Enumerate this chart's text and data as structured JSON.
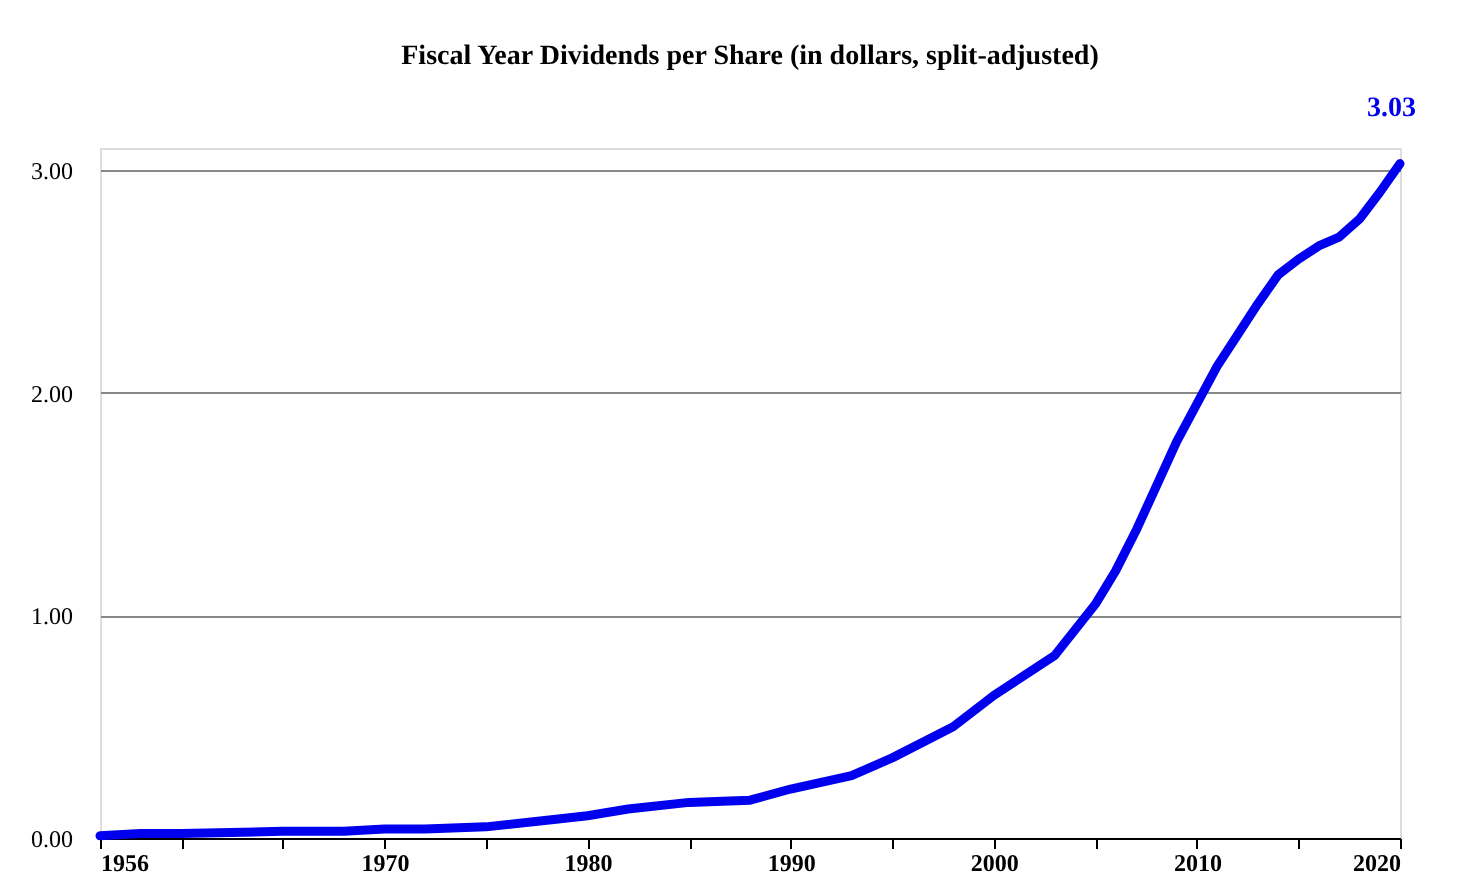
{
  "chart_data": {
    "type": "line",
    "title": "Fiscal Year Dividends per Share (in dollars, split-adjusted)",
    "x": [
      1956,
      1958,
      1960,
      1965,
      1968,
      1970,
      1972,
      1975,
      1978,
      1980,
      1982,
      1985,
      1988,
      1990,
      1993,
      1995,
      1998,
      2000,
      2003,
      2005,
      2006,
      2007,
      2008,
      2009,
      2010,
      2011,
      2012,
      2013,
      2014,
      2015,
      2016,
      2017,
      2018,
      2019,
      2020
    ],
    "series": [
      {
        "color": "#0000ee",
        "values": [
          0.01,
          0.02,
          0.02,
          0.03,
          0.03,
          0.04,
          0.04,
          0.05,
          0.08,
          0.1,
          0.13,
          0.16,
          0.17,
          0.22,
          0.28,
          0.36,
          0.5,
          0.64,
          0.82,
          1.05,
          1.2,
          1.38,
          1.58,
          1.78,
          1.95,
          2.12,
          2.26,
          2.4,
          2.53,
          2.6,
          2.66,
          2.7,
          2.78,
          2.9,
          3.03
        ],
        "value_labels": [
          null,
          null,
          null,
          null,
          null,
          null,
          null,
          null,
          null,
          null,
          null,
          null,
          null,
          null,
          null,
          null,
          null,
          null,
          null,
          null,
          null,
          null,
          null,
          null,
          null,
          null,
          null,
          null,
          null,
          null,
          null,
          null,
          null,
          null,
          "3.03"
        ]
      }
    ],
    "xlim": [
      1956,
      2020
    ],
    "xticks": [
      1956,
      {
        "value": 1960,
        "label": null
      },
      {
        "value": 1965,
        "label": null
      },
      1970,
      {
        "value": 1975,
        "label": null
      },
      1980,
      {
        "value": 1985,
        "label": null
      },
      1990,
      {
        "value": 1995,
        "label": null
      },
      2000,
      {
        "value": 2005,
        "label": null
      },
      2010,
      {
        "value": 2015,
        "label": null
      },
      2020
    ],
    "ylim": [
      0,
      3.1
    ],
    "yticks": [
      {
        "value": 0,
        "label": "0.00"
      },
      {
        "value": 1,
        "label": "1.00"
      },
      {
        "value": 2,
        "label": "2.00"
      },
      {
        "value": 3,
        "label": "3.00"
      }
    ],
    "grid": "y",
    "marker": "none",
    "line_style": "solid"
  }
}
